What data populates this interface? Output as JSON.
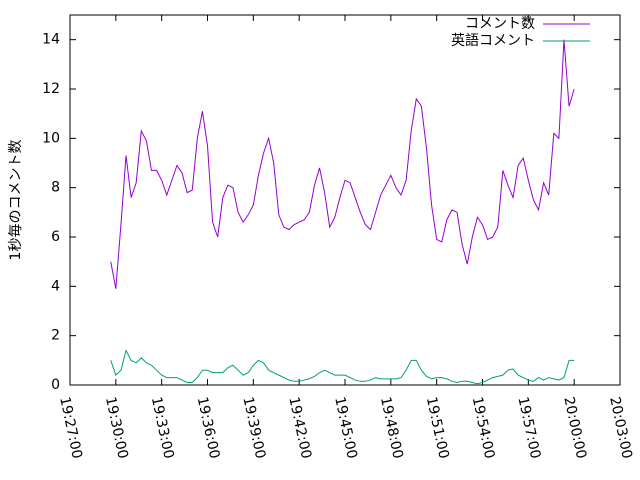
{
  "chart_data": {
    "type": "line",
    "y_label": "1秒毎のコメント数",
    "x": [
      "19:29:40",
      "19:30:00",
      "19:30:20",
      "19:30:40",
      "19:31:00",
      "19:31:20",
      "19:31:40",
      "19:32:00",
      "19:32:20",
      "19:32:40",
      "19:33:00",
      "19:33:20",
      "19:33:40",
      "19:34:00",
      "19:34:20",
      "19:34:40",
      "19:35:00",
      "19:35:20",
      "19:35:40",
      "19:36:00",
      "19:36:20",
      "19:36:40",
      "19:37:00",
      "19:37:20",
      "19:37:40",
      "19:38:00",
      "19:38:20",
      "19:38:40",
      "19:39:00",
      "19:39:20",
      "19:39:40",
      "19:40:00",
      "19:40:20",
      "19:40:40",
      "19:41:00",
      "19:41:20",
      "19:41:40",
      "19:42:00",
      "19:42:20",
      "19:42:40",
      "19:43:00",
      "19:43:20",
      "19:43:40",
      "19:44:00",
      "19:44:20",
      "19:44:40",
      "19:45:00",
      "19:45:20",
      "19:45:40",
      "19:46:00",
      "19:46:20",
      "19:46:40",
      "19:47:00",
      "19:47:20",
      "19:47:40",
      "19:48:00",
      "19:48:20",
      "19:48:40",
      "19:49:00",
      "19:49:20",
      "19:49:40",
      "19:50:00",
      "19:50:20",
      "19:50:40",
      "19:51:00",
      "19:51:20",
      "19:51:40",
      "19:52:00",
      "19:52:20",
      "19:52:40",
      "19:53:00",
      "19:53:20",
      "19:53:40",
      "19:54:00",
      "19:54:20",
      "19:54:40",
      "19:55:00",
      "19:55:20",
      "19:55:40",
      "19:56:00",
      "19:56:20",
      "19:56:40",
      "19:57:00",
      "19:57:20",
      "19:57:40",
      "19:58:00",
      "19:58:20",
      "19:58:40",
      "19:59:00",
      "19:59:20",
      "19:59:40",
      "20:00:00"
    ],
    "series": [
      {
        "name": "コメント数",
        "color": "#9400d3",
        "values": [
          5,
          3.9,
          6.5,
          9.3,
          7.6,
          8.2,
          10.3,
          9.9,
          8.7,
          8.7,
          8.3,
          7.7,
          8.3,
          8.9,
          8.6,
          7.8,
          7.9,
          10.0,
          11.1,
          9.7,
          6.6,
          6.0,
          7.6,
          8.1,
          8.0,
          7.0,
          6.6,
          6.9,
          7.3,
          8.5,
          9.4,
          10.0,
          9.0,
          6.9,
          6.4,
          6.3,
          6.5,
          6.6,
          6.7,
          7.0,
          8.1,
          8.8,
          7.8,
          6.4,
          6.8,
          7.6,
          8.3,
          8.2,
          7.6,
          7.0,
          6.5,
          6.3,
          7.0,
          7.7,
          8.1,
          8.5,
          8.0,
          7.7,
          8.3,
          10.3,
          11.6,
          11.3,
          9.6,
          7.3,
          5.9,
          5.8,
          6.7,
          7.1,
          7.0,
          5.7,
          4.9,
          6.0,
          6.8,
          6.5,
          5.9,
          6.0,
          6.4,
          8.7,
          8.1,
          7.6,
          8.9,
          9.2,
          8.3,
          7.5,
          7.1,
          8.2,
          7.7,
          10.2,
          10.0,
          14.0,
          11.3,
          12.0
        ]
      },
      {
        "name": "英語コメント",
        "color": "#009e73",
        "values": [
          1.0,
          0.4,
          0.6,
          1.4,
          1.0,
          0.9,
          1.1,
          0.9,
          0.8,
          0.6,
          0.4,
          0.3,
          0.3,
          0.3,
          0.2,
          0.1,
          0.1,
          0.3,
          0.6,
          0.6,
          0.5,
          0.5,
          0.5,
          0.7,
          0.8,
          0.6,
          0.4,
          0.5,
          0.8,
          1.0,
          0.9,
          0.6,
          0.5,
          0.4,
          0.3,
          0.2,
          0.15,
          0.15,
          0.2,
          0.25,
          0.35,
          0.5,
          0.6,
          0.5,
          0.4,
          0.4,
          0.4,
          0.3,
          0.2,
          0.15,
          0.15,
          0.2,
          0.3,
          0.25,
          0.25,
          0.25,
          0.25,
          0.3,
          0.6,
          1.0,
          1.0,
          0.6,
          0.35,
          0.25,
          0.3,
          0.3,
          0.25,
          0.15,
          0.1,
          0.15,
          0.15,
          0.1,
          0.05,
          0.1,
          0.2,
          0.3,
          0.35,
          0.4,
          0.6,
          0.65,
          0.4,
          0.3,
          0.2,
          0.15,
          0.3,
          0.2,
          0.3,
          0.25,
          0.2,
          0.3,
          1.0,
          1.0
        ]
      }
    ],
    "xlim": [
      "19:27:00",
      "20:03:00"
    ],
    "xticks": [
      "19:27:00",
      "19:30:00",
      "19:33:00",
      "19:36:00",
      "19:39:00",
      "19:42:00",
      "19:45:00",
      "19:48:00",
      "19:51:00",
      "19:54:00",
      "19:57:00",
      "20:00:00",
      "20:03:00"
    ],
    "ylim": [
      0,
      15
    ],
    "yticks": [
      0,
      2,
      4,
      6,
      8,
      10,
      12,
      14
    ],
    "legend": "top-right",
    "grid": false
  }
}
